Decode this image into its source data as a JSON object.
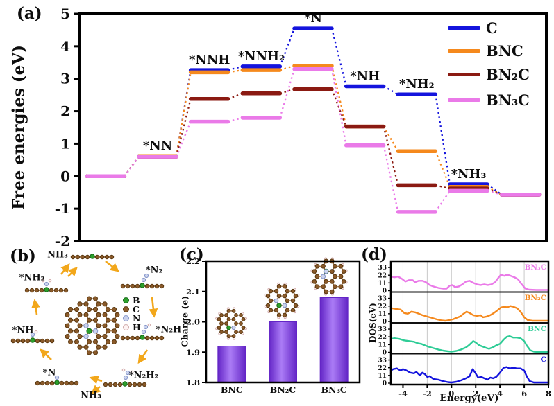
{
  "figure": {
    "background": "#ffffff",
    "panels": {
      "a": {
        "label": "(a)",
        "ylabel": "Free energies (eV)"
      },
      "b": {
        "label": "(b)",
        "cycle_labels": [
          "NH₃",
          "*N₂",
          "*N₂H",
          "*N₂H₂",
          "NH₃",
          "*N",
          "*NH",
          "*NH₂"
        ],
        "atoms": [
          {
            "symbol": "B",
            "fill": "#2ca02c",
            "stroke": "#156615"
          },
          {
            "symbol": "C",
            "fill": "#8a5a2a",
            "stroke": "#59370f"
          },
          {
            "symbol": "N",
            "fill": "#ccd4ee",
            "stroke": "#8494c8"
          },
          {
            "symbol": "H",
            "fill": "#fdf4f4",
            "stroke": "#cfa8a8"
          }
        ]
      },
      "c": {
        "label": "(c)",
        "ylabel": "Charge (e)"
      },
      "d": {
        "label": "(d)",
        "ylabel": "DOS(eV)",
        "xlabel": "Energy(eV)"
      }
    }
  },
  "chart_data": [
    {
      "id": "free-energy-diagram",
      "type": "line",
      "panel": "a",
      "ylabel": "Free energies (eV)",
      "ylim": [
        -2,
        5
      ],
      "yticks": [
        5,
        4,
        3,
        2,
        1,
        0,
        -1,
        -2
      ],
      "step_labels": [
        "",
        "*NN",
        "*NNH",
        "*NNH₂",
        "*N",
        "*NH",
        "*NH₂",
        "*NH₃",
        ""
      ],
      "legend_position": "top-right",
      "series": [
        {
          "name": "C",
          "color": "#1414dd",
          "values": [
            0,
            0.62,
            3.27,
            3.38,
            4.55,
            2.77,
            2.52,
            -0.25,
            -0.57
          ]
        },
        {
          "name": "BNC",
          "color": "#f5891d",
          "values": [
            0,
            0.62,
            3.2,
            3.27,
            3.4,
            1.53,
            0.77,
            -0.33,
            -0.57
          ]
        },
        {
          "name": "BN₂C",
          "color": "#8b1a12",
          "values": [
            0,
            0.6,
            2.38,
            2.55,
            2.68,
            1.53,
            -0.28,
            -0.38,
            -0.57
          ]
        },
        {
          "name": "BN₃C",
          "color": "#ea7ae8",
          "values": [
            0,
            0.6,
            1.68,
            1.8,
            3.3,
            0.95,
            -1.1,
            -0.45,
            -0.57
          ]
        }
      ]
    },
    {
      "id": "charge-transfer",
      "type": "bar",
      "panel": "c",
      "categories": [
        "BNC",
        "BN₂C",
        "BN₃C"
      ],
      "values": [
        1.92,
        2.0,
        2.08
      ],
      "ylabel": "Charge (e)",
      "ylim": [
        1.8,
        2.2
      ],
      "yticks": [
        2.2,
        2.1,
        2.0,
        1.9,
        1.8
      ],
      "bar_color": "#8a46e8",
      "bar_edge": "#6325c6",
      "inset_n_counts": [
        1,
        2,
        3
      ]
    },
    {
      "id": "density-of-states",
      "type": "line",
      "panel": "d",
      "xlabel": "Energy(eV)",
      "ylabel": "DOS(eV)",
      "xlim": [
        -5,
        8
      ],
      "xticks": [
        -4,
        -2,
        0,
        2,
        4,
        6,
        8
      ],
      "panel_yticks": [
        0,
        11,
        22,
        33
      ],
      "grid": true,
      "series": [
        {
          "name": "BN₃C",
          "color": "#ea7ae8",
          "points": [
            [
              -5,
              20
            ],
            [
              -4.7,
              19
            ],
            [
              -4.4,
              20
            ],
            [
              -4.1,
              17
            ],
            [
              -3.8,
              13
            ],
            [
              -3.5,
              15
            ],
            [
              -3.2,
              15
            ],
            [
              -3,
              12
            ],
            [
              -2.7,
              14
            ],
            [
              -2.4,
              14
            ],
            [
              -2.1,
              12
            ],
            [
              -1.8,
              8
            ],
            [
              -1.5,
              6
            ],
            [
              -1.1,
              4
            ],
            [
              -0.7,
              3
            ],
            [
              -0.4,
              3
            ],
            [
              -0.15,
              7
            ],
            [
              0.05,
              8
            ],
            [
              0.3,
              5
            ],
            [
              0.6,
              6
            ],
            [
              0.9,
              9
            ],
            [
              1.2,
              13
            ],
            [
              1.5,
              14
            ],
            [
              1.8,
              11
            ],
            [
              2.1,
              9
            ],
            [
              2.4,
              8
            ],
            [
              2.7,
              9
            ],
            [
              3,
              8
            ],
            [
              3.3,
              9
            ],
            [
              3.6,
              12
            ],
            [
              3.9,
              19
            ],
            [
              4.1,
              23
            ],
            [
              4.35,
              21
            ],
            [
              4.6,
              23
            ],
            [
              4.9,
              21
            ],
            [
              5.2,
              19
            ],
            [
              5.5,
              16
            ],
            [
              5.8,
              9
            ],
            [
              6.1,
              3
            ],
            [
              6.4,
              1.5
            ],
            [
              7,
              1
            ],
            [
              8,
              1
            ]
          ]
        },
        {
          "name": "BN₂C",
          "color": "#f5891d",
          "points": [
            [
              -5,
              19
            ],
            [
              -4.6,
              18
            ],
            [
              -4.2,
              17
            ],
            [
              -3.9,
              12
            ],
            [
              -3.6,
              11
            ],
            [
              -3.3,
              14
            ],
            [
              -3,
              13
            ],
            [
              -2.7,
              11
            ],
            [
              -2.4,
              9
            ],
            [
              -2,
              7
            ],
            [
              -1.6,
              5
            ],
            [
              -1.2,
              3
            ],
            [
              -0.8,
              1.5
            ],
            [
              -0.5,
              1
            ],
            [
              -0.2,
              2
            ],
            [
              0.1,
              3
            ],
            [
              0.4,
              5
            ],
            [
              0.7,
              7
            ],
            [
              1,
              11
            ],
            [
              1.25,
              14
            ],
            [
              1.5,
              12
            ],
            [
              1.8,
              9
            ],
            [
              2.1,
              8
            ],
            [
              2.4,
              9
            ],
            [
              2.6,
              6
            ],
            [
              2.9,
              7
            ],
            [
              3.2,
              9
            ],
            [
              3.5,
              12
            ],
            [
              3.8,
              16
            ],
            [
              4.1,
              20
            ],
            [
              4.4,
              21
            ],
            [
              4.6,
              20
            ],
            [
              4.85,
              22
            ],
            [
              5.1,
              21
            ],
            [
              5.4,
              19
            ],
            [
              5.7,
              14
            ],
            [
              6,
              6
            ],
            [
              6.3,
              2
            ],
            [
              6.7,
              1
            ],
            [
              8,
              1
            ]
          ]
        },
        {
          "name": "BNC",
          "color": "#2ecc96",
          "points": [
            [
              -5,
              19
            ],
            [
              -4.7,
              20
            ],
            [
              -4.3,
              19
            ],
            [
              -3.9,
              17
            ],
            [
              -3.5,
              16
            ],
            [
              -3.1,
              15
            ],
            [
              -2.8,
              13
            ],
            [
              -2.5,
              12
            ],
            [
              -2.2,
              10
            ],
            [
              -1.9,
              8
            ],
            [
              -1.5,
              6
            ],
            [
              -1.1,
              4
            ],
            [
              -0.7,
              2.5
            ],
            [
              -0.3,
              1.5
            ],
            [
              0,
              1
            ],
            [
              0.4,
              2
            ],
            [
              0.8,
              4
            ],
            [
              1.2,
              7
            ],
            [
              1.5,
              11
            ],
            [
              1.8,
              16
            ],
            [
              2,
              14
            ],
            [
              2.3,
              10
            ],
            [
              2.6,
              8
            ],
            [
              2.9,
              6
            ],
            [
              3.1,
              5
            ],
            [
              3.4,
              7
            ],
            [
              3.7,
              10
            ],
            [
              4,
              12
            ],
            [
              4.3,
              18
            ],
            [
              4.55,
              22
            ],
            [
              4.8,
              23
            ],
            [
              5.1,
              21
            ],
            [
              5.4,
              21
            ],
            [
              5.7,
              20
            ],
            [
              6,
              16
            ],
            [
              6.2,
              10
            ],
            [
              6.5,
              3
            ],
            [
              6.8,
              1
            ],
            [
              7.2,
              0.5
            ],
            [
              8,
              0.5
            ]
          ]
        },
        {
          "name": "C",
          "color": "#1414dd",
          "points": [
            [
              -5,
              18
            ],
            [
              -4.8,
              20
            ],
            [
              -4.5,
              21
            ],
            [
              -4.2,
              18
            ],
            [
              -4,
              20
            ],
            [
              -3.7,
              18
            ],
            [
              -3.4,
              15
            ],
            [
              -3.1,
              14
            ],
            [
              -2.9,
              16
            ],
            [
              -2.6,
              11
            ],
            [
              -2.4,
              15
            ],
            [
              -2.2,
              13
            ],
            [
              -2,
              9
            ],
            [
              -1.8,
              10
            ],
            [
              -1.5,
              6
            ],
            [
              -1.1,
              5
            ],
            [
              -0.7,
              3
            ],
            [
              -0.3,
              1.5
            ],
            [
              0,
              1
            ],
            [
              0.4,
              2
            ],
            [
              0.8,
              4
            ],
            [
              1.2,
              7
            ],
            [
              1.5,
              10
            ],
            [
              1.75,
              20
            ],
            [
              1.95,
              15
            ],
            [
              2.2,
              8
            ],
            [
              2.45,
              9
            ],
            [
              2.7,
              7
            ],
            [
              3,
              5
            ],
            [
              3.2,
              8
            ],
            [
              3.45,
              7
            ],
            [
              3.7,
              9
            ],
            [
              4,
              15
            ],
            [
              4.3,
              22
            ],
            [
              4.55,
              23
            ],
            [
              4.8,
              21
            ],
            [
              5.1,
              22
            ],
            [
              5.4,
              21
            ],
            [
              5.7,
              21
            ],
            [
              6,
              18
            ],
            [
              6.2,
              10
            ],
            [
              6.45,
              3
            ],
            [
              6.8,
              1
            ],
            [
              8,
              1
            ]
          ]
        }
      ]
    }
  ]
}
